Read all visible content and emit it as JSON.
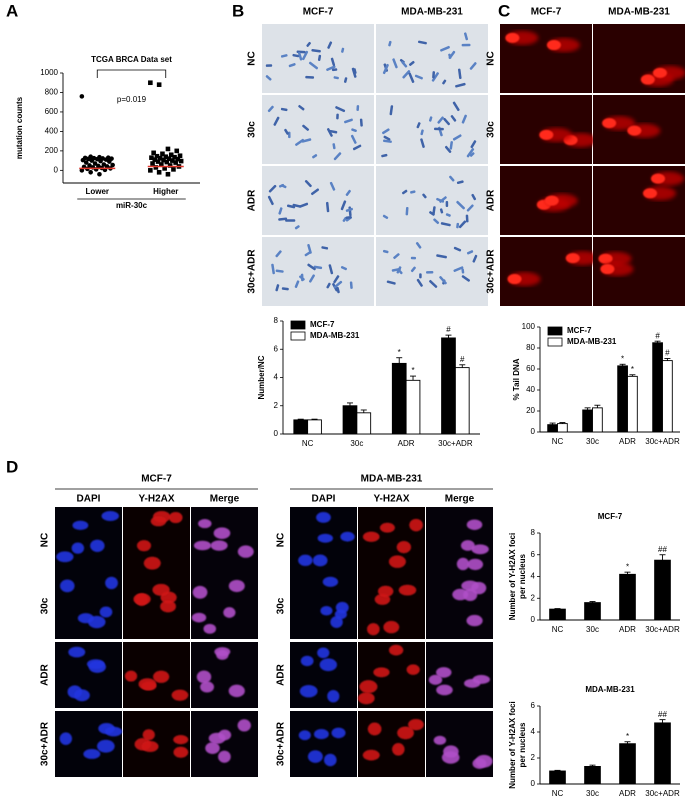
{
  "panels": {
    "A": {
      "label": "A"
    },
    "B": {
      "label": "B",
      "columns": [
        "MCF-7",
        "MDA-MB-231"
      ],
      "rows": [
        "NC",
        "30c",
        "ADR",
        "30c+ADR"
      ]
    },
    "C": {
      "label": "C",
      "columns": [
        "MCF-7",
        "MDA-MB-231"
      ],
      "rows": [
        "NC",
        "30c",
        "ADR",
        "30c+ADR"
      ]
    },
    "D": {
      "label": "D",
      "groups": [
        {
          "title": "MCF-7",
          "columns": [
            "DAPI",
            "Y-H2AX",
            "Merge"
          ],
          "rows": [
            "NC",
            "30c",
            "ADR",
            "30c+ADR"
          ]
        },
        {
          "title": "MDA-MB-231",
          "columns": [
            "DAPI",
            "Y-H2AX",
            "Merge"
          ],
          "rows": [
            "NC",
            "30c",
            "ADR",
            "30c+ADR"
          ]
        }
      ]
    }
  },
  "chart_data": [
    {
      "type": "strip",
      "title": "TCGA BRCA Data set",
      "categories": [
        "Lower",
        "Higher"
      ],
      "xlabel": "miR-30c",
      "ylabel": "mutation counts",
      "annotation": "p=0.019",
      "points": [
        [
          760,
          140,
          135,
          130,
          128,
          125,
          122,
          120,
          118,
          115,
          110,
          105,
          100,
          95,
          90,
          80,
          70,
          60,
          55,
          50,
          45,
          40,
          35,
          30,
          25,
          20,
          15,
          10,
          5,
          0,
          -20,
          -40
        ],
        [
          900,
          880,
          220,
          200,
          180,
          170,
          160,
          150,
          145,
          140,
          135,
          130,
          125,
          120,
          115,
          110,
          105,
          100,
          95,
          90,
          85,
          80,
          70,
          60,
          50,
          40,
          30,
          20,
          10,
          0,
          -20,
          -40
        ]
      ],
      "markers": [
        "circle",
        "square"
      ],
      "color": "#000000",
      "medians": [
        20,
        40
      ],
      "median_color": "#e0372b",
      "ylim": [
        -130,
        1000
      ],
      "yticks": [
        0,
        200,
        400,
        600,
        800,
        1000
      ]
    },
    {
      "type": "bar",
      "categories": [
        "NC",
        "30c",
        "ADR",
        "30c+ADR"
      ],
      "ylabel": "Number/NC",
      "legend": "upper left",
      "series": [
        {
          "name": "MCF-7",
          "color": "#000000",
          "values": [
            1,
            2,
            5,
            6.8
          ],
          "errors": [
            0.05,
            0.2,
            0.4,
            0.2
          ],
          "annotations": [
            null,
            null,
            "*",
            "#"
          ]
        },
        {
          "name": "MDA-MB-231",
          "color": "#ffffff",
          "values": [
            1,
            1.5,
            3.8,
            4.7
          ],
          "errors": [
            0.05,
            0.2,
            0.3,
            0.2
          ],
          "annotations": [
            null,
            null,
            "*",
            "#"
          ]
        }
      ],
      "ylim": [
        0,
        8
      ],
      "yticks": [
        0,
        2,
        4,
        6,
        8
      ]
    },
    {
      "type": "bar",
      "categories": [
        "NC",
        "30c",
        "ADR",
        "30c+ADR"
      ],
      "ylabel": "% Tail DNA",
      "legend": "upper left",
      "series": [
        {
          "name": "MCF-7",
          "color": "#000000",
          "values": [
            7,
            21,
            63,
            85
          ],
          "errors": [
            1.5,
            2,
            1.5,
            1.5
          ],
          "annotations": [
            null,
            null,
            "*",
            "#"
          ]
        },
        {
          "name": "MDA-MB-231",
          "color": "#ffffff",
          "values": [
            8,
            23,
            53,
            68
          ],
          "errors": [
            1,
            2.5,
            1.5,
            2
          ],
          "annotations": [
            null,
            null,
            "*",
            "#"
          ]
        }
      ],
      "ylim": [
        0,
        100
      ],
      "yticks": [
        0,
        20,
        40,
        60,
        80,
        100
      ]
    },
    {
      "type": "bar",
      "title": "MCF-7",
      "categories": [
        "NC",
        "30c",
        "ADR",
        "30c+ADR"
      ],
      "ylabel": [
        "Number of Y-H2AX foci",
        "per nucleus"
      ],
      "color": "#000000",
      "values": [
        1,
        1.6,
        4.2,
        5.5
      ],
      "errors": [
        0.05,
        0.1,
        0.2,
        0.5
      ],
      "annotations": [
        null,
        null,
        "*",
        "##"
      ],
      "ylim": [
        0,
        8
      ],
      "yticks": [
        0,
        2,
        4,
        6,
        8
      ]
    },
    {
      "type": "bar",
      "title": "MDA-MB-231",
      "categories": [
        "NC",
        "30c",
        "ADR",
        "30c+ADR"
      ],
      "ylabel": [
        "Number of Y-H2AX foci",
        "per nucleus"
      ],
      "color": "#000000",
      "values": [
        1,
        1.35,
        3.1,
        4.7
      ],
      "errors": [
        0.05,
        0.1,
        0.15,
        0.25
      ],
      "annotations": [
        null,
        null,
        "*",
        "##"
      ],
      "ylim": [
        0,
        6
      ],
      "yticks": [
        0,
        2,
        4,
        6
      ]
    }
  ]
}
